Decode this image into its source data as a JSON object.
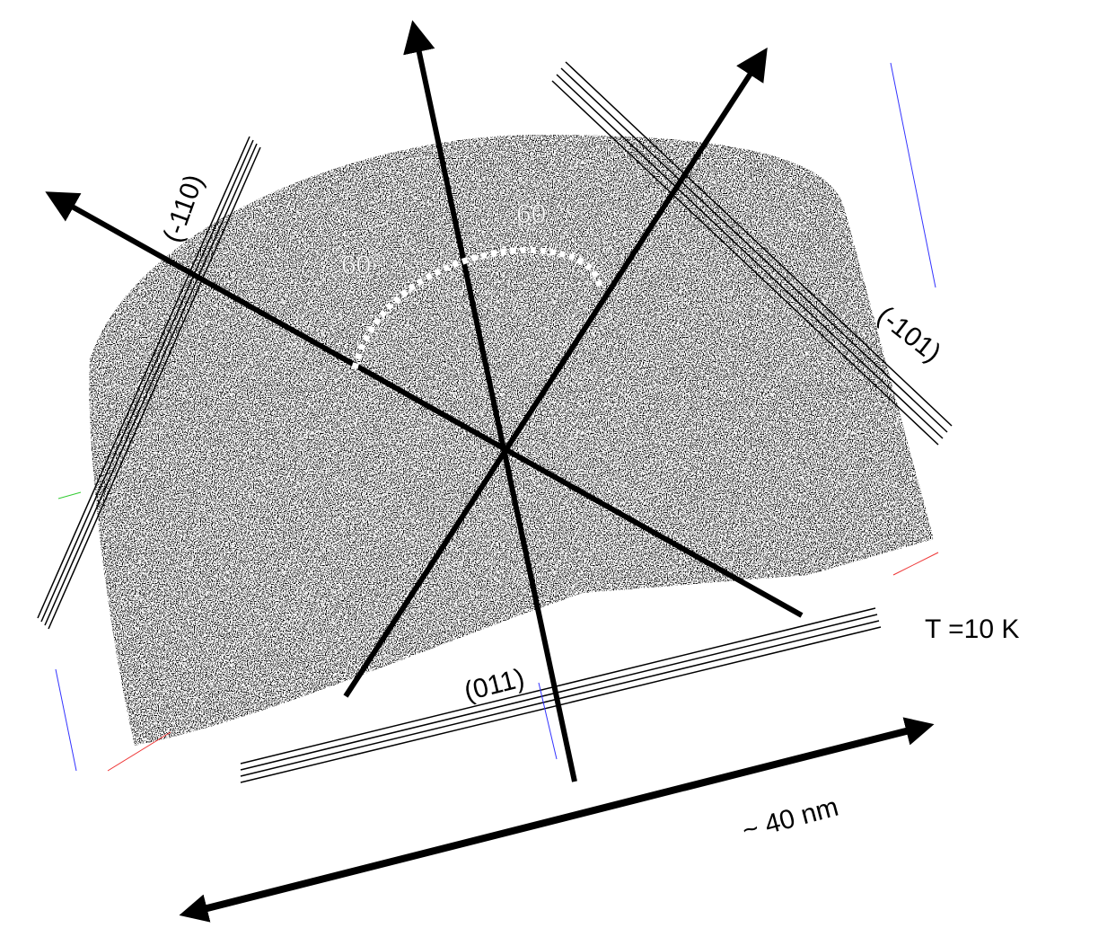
{
  "labels": {
    "plane_left": "(-110)",
    "plane_right": "(-101)",
    "plane_bottom": "(011)",
    "angle_left": "60°",
    "angle_right": "60°",
    "temperature": "T =10 K",
    "scale": "~ 40 nm"
  }
}
